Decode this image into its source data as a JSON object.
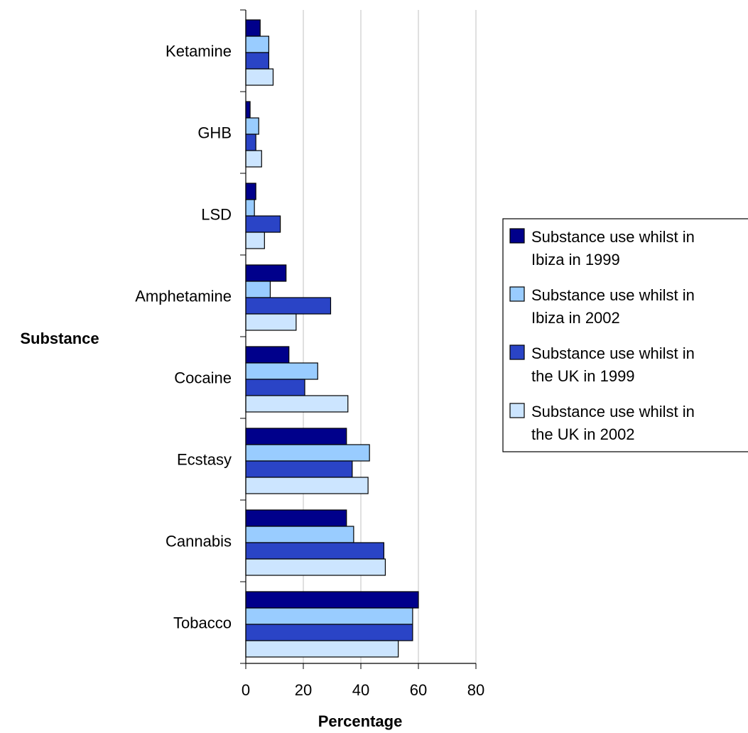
{
  "chart_data": {
    "type": "bar",
    "orientation": "horizontal",
    "categories": [
      "Ketamine",
      "GHB",
      "LSD",
      "Amphetamine",
      "Cocaine",
      "Ecstasy",
      "Cannabis",
      "Tobacco"
    ],
    "series": [
      {
        "name": "Substance use whilst in Ibiza in 1999",
        "name_lines": [
          "Substance use whilst in",
          "Ibiza in 1999"
        ],
        "color": "#00008b",
        "values": [
          5,
          1.5,
          3.5,
          14,
          15,
          35,
          35,
          60
        ]
      },
      {
        "name": "Substance use whilst in Ibiza in 2002",
        "name_lines": [
          "Substance use whilst in",
          "Ibiza in 2002"
        ],
        "color": "#99ccff",
        "values": [
          8,
          4.5,
          3,
          8.5,
          25,
          43,
          37.5,
          58
        ]
      },
      {
        "name": "Substance use whilst in the UK in 1999",
        "name_lines": [
          "Substance use whilst in",
          "the UK in 1999"
        ],
        "color": "#2a44c6",
        "values": [
          8,
          3.5,
          12,
          29.5,
          20.5,
          37,
          48,
          58
        ]
      },
      {
        "name": "Substance use whilst in the UK in 2002",
        "name_lines": [
          "Substance use whilst in",
          "the UK in 2002"
        ],
        "color": "#cce5ff",
        "values": [
          9.5,
          5.5,
          6.5,
          17.5,
          35.5,
          42.5,
          48.5,
          53
        ]
      }
    ],
    "xlabel": "Percentage",
    "ylabel": "Substance",
    "xlim": [
      0,
      80
    ],
    "xticks": [
      "0",
      "20",
      "40",
      "60",
      "80"
    ],
    "grid": "vertical",
    "legend_position": "right"
  }
}
